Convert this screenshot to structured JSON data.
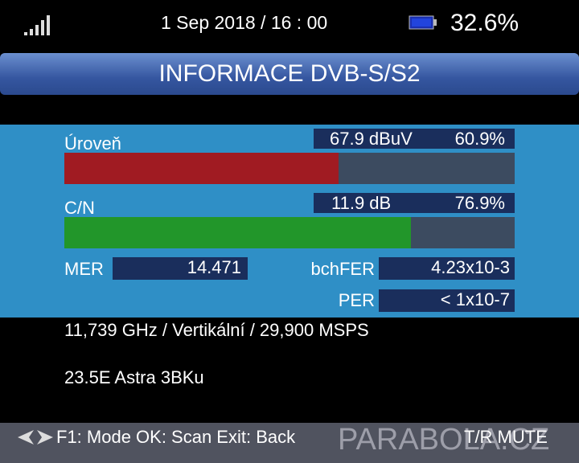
{
  "status": {
    "datetime": "1 Sep 2018 / 16 : 00",
    "battery": "32.6%"
  },
  "header": {
    "title": "INFORMACE DVB-S/S2"
  },
  "level": {
    "label": "Úroveň",
    "reading": "67.9 dBuV",
    "percent": 60.9,
    "percent_label": "60.9%"
  },
  "cn": {
    "label": "C/N",
    "reading": "11.9 dB",
    "percent": 76.9,
    "percent_label": "76.9%"
  },
  "mer": {
    "label": "MER",
    "value": "14.471"
  },
  "bchfer": {
    "label": "bchFER",
    "value": "4.23x10-3"
  },
  "per": {
    "label": "PER",
    "value": "< 1x10-7"
  },
  "transponder": "11,739 GHz / Vertikální / 29,900 MSPS",
  "satellite": "23.5E Astra 3BKu",
  "footer": {
    "keys": "F1: Mode OK: Scan Exit: Back",
    "watermark": "PARABOLA.CZ",
    "mute": "T/R MUTE"
  }
}
